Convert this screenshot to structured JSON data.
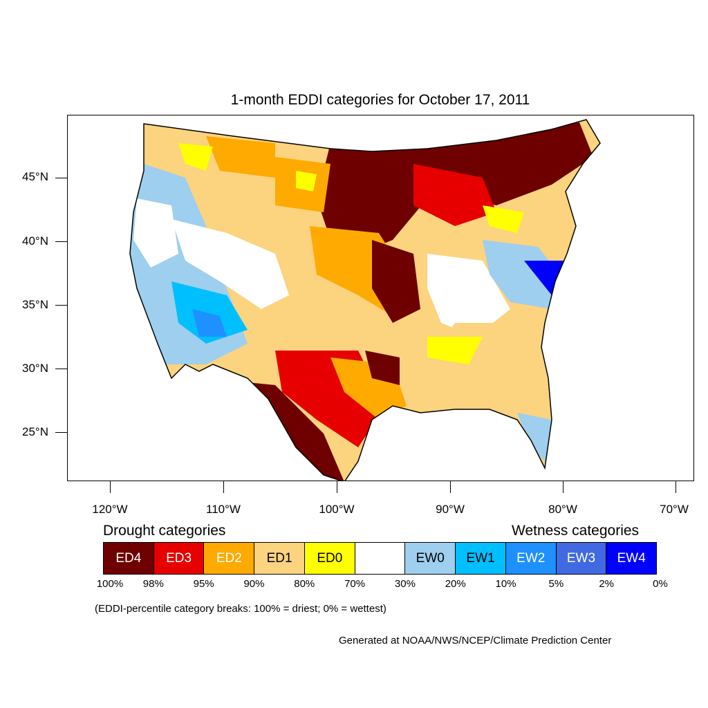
{
  "title": "1-month EDDI categories for October 17, 2011",
  "lat_labels": [
    "45°N",
    "40°N",
    "35°N",
    "30°N",
    "25°N"
  ],
  "lon_labels": [
    "120°W",
    "110°W",
    "100°W",
    "90°W",
    "80°W",
    "70°W"
  ],
  "legend": {
    "drought_title": "Drought categories",
    "wetness_title": "Wetness categories",
    "categories": [
      {
        "label": "ED4",
        "color": "#6e0000",
        "text_color": "#ffffff"
      },
      {
        "label": "ED3",
        "color": "#e60000",
        "text_color": "#ffffff"
      },
      {
        "label": "ED2",
        "color": "#ffaa00",
        "text_color": "#ffffff"
      },
      {
        "label": "ED1",
        "color": "#fcd37f",
        "text_color": "#000000"
      },
      {
        "label": "ED0",
        "color": "#ffff00",
        "text_color": "#000000"
      },
      {
        "label": "",
        "color": "#ffffff",
        "text_color": "#000000"
      },
      {
        "label": "EW0",
        "color": "#9ecfef",
        "text_color": "#000000"
      },
      {
        "label": "EW1",
        "color": "#00bfff",
        "text_color": "#000000"
      },
      {
        "label": "EW2",
        "color": "#1e90ff",
        "text_color": "#ffffff"
      },
      {
        "label": "EW3",
        "color": "#4169e1",
        "text_color": "#ffffff"
      },
      {
        "label": "EW4",
        "color": "#0000ff",
        "text_color": "#ffffff"
      }
    ],
    "breaks": [
      "100%",
      "98%",
      "95%",
      "90%",
      "80%",
      "70%",
      "30%",
      "20%",
      "10%",
      "5%",
      "2%",
      "0%"
    ]
  },
  "note": "(EDDI-percentile category breaks: 100% = driest; 0% = wettest)",
  "credit": "Generated at NOAA/NWS/NCEP/Climate Prediction Center"
}
